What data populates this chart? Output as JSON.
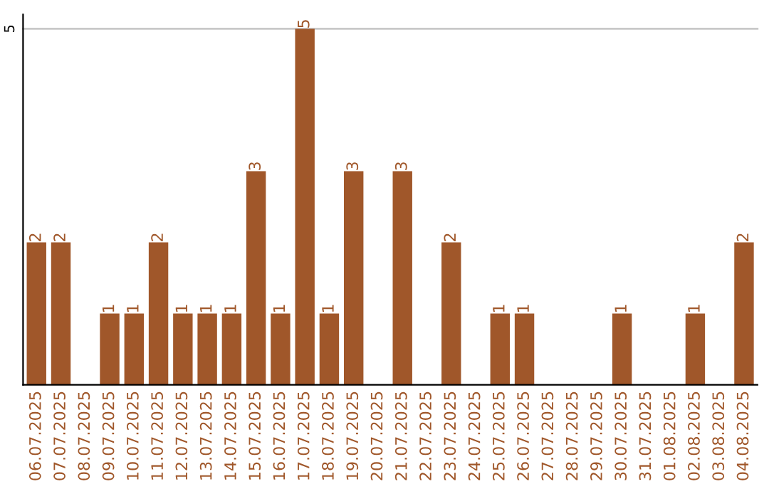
{
  "chart_data": {
    "type": "bar",
    "categories": [
      "06.07.2025",
      "07.07.2025",
      "08.07.2025",
      "09.07.2025",
      "10.07.2025",
      "11.07.2025",
      "12.07.2025",
      "13.07.2025",
      "14.07.2025",
      "15.07.2025",
      "16.07.2025",
      "17.07.2025",
      "18.07.2025",
      "19.07.2025",
      "20.07.2025",
      "21.07.2025",
      "22.07.2025",
      "23.07.2025",
      "24.07.2025",
      "25.07.2025",
      "26.07.2025",
      "27.07.2025",
      "28.07.2025",
      "29.07.2025",
      "30.07.2025",
      "31.07.2025",
      "01.08.2025",
      "02.08.2025",
      "03.08.2025",
      "04.08.2025"
    ],
    "values": [
      2,
      2,
      0,
      1,
      1,
      2,
      1,
      1,
      1,
      3,
      1,
      5,
      1,
      3,
      0,
      3,
      0,
      2,
      0,
      1,
      1,
      0,
      0,
      0,
      1,
      0,
      0,
      1,
      0,
      2
    ],
    "value_labels": [
      "2",
      "2",
      null,
      "1",
      "1",
      "2",
      "1",
      "1",
      "1",
      "3",
      "1",
      "5",
      "1",
      "3",
      null,
      "3",
      null,
      "2",
      null,
      "1",
      "1",
      null,
      null,
      null,
      "1",
      null,
      null,
      "1",
      null,
      "2"
    ],
    "color": "#a0572a",
    "ylim": [
      0,
      5.2
    ],
    "yticks": [
      5
    ],
    "grid": "y"
  }
}
